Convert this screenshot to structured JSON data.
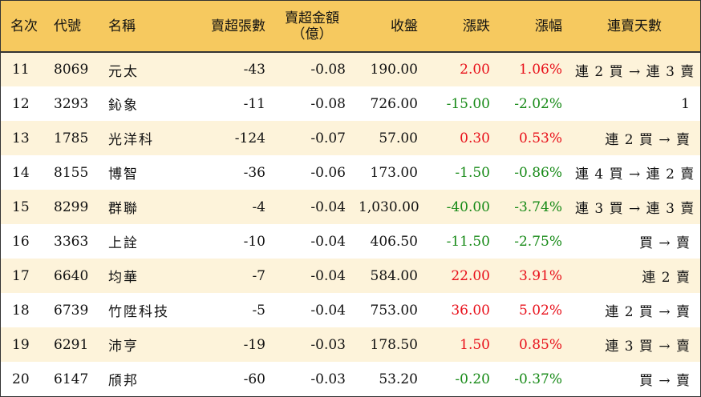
{
  "headers": {
    "rank": "名次",
    "code": "代號",
    "name": "名稱",
    "net_sell_lots": "賣超張數",
    "net_sell_amount_line1": "賣超金額",
    "net_sell_amount_line2": "（億）",
    "close": "收盤",
    "change": "漲跌",
    "change_pct": "漲幅",
    "streak": "連賣天數"
  },
  "colors": {
    "header_bg": "#f6c95f",
    "stripe_bg": "#fdf3da",
    "up": "#e8101a",
    "down": "#178a17"
  },
  "rows": [
    {
      "rank": "11",
      "code": "8069",
      "name": "元太",
      "net_sell_lots": "-43",
      "net_sell_amount": "-0.08",
      "close": "190.00",
      "change": "2.00",
      "change_pct": "1.06%",
      "direction": "up",
      "streak": "連 2 買 → 連 3 賣"
    },
    {
      "rank": "12",
      "code": "3293",
      "name": "鈊象",
      "net_sell_lots": "-11",
      "net_sell_amount": "-0.08",
      "close": "726.00",
      "change": "-15.00",
      "change_pct": "-2.02%",
      "direction": "down",
      "streak": "1"
    },
    {
      "rank": "13",
      "code": "1785",
      "name": "光洋科",
      "net_sell_lots": "-124",
      "net_sell_amount": "-0.07",
      "close": "57.00",
      "change": "0.30",
      "change_pct": "0.53%",
      "direction": "up",
      "streak": "連 2 買 → 賣"
    },
    {
      "rank": "14",
      "code": "8155",
      "name": "博智",
      "net_sell_lots": "-36",
      "net_sell_amount": "-0.06",
      "close": "173.00",
      "change": "-1.50",
      "change_pct": "-0.86%",
      "direction": "down",
      "streak": "連 4 買 → 連 2 賣"
    },
    {
      "rank": "15",
      "code": "8299",
      "name": "群聯",
      "net_sell_lots": "-4",
      "net_sell_amount": "-0.04",
      "close": "1,030.00",
      "change": "-40.00",
      "change_pct": "-3.74%",
      "direction": "down",
      "streak": "連 3 買 → 連 3 賣"
    },
    {
      "rank": "16",
      "code": "3363",
      "name": "上詮",
      "net_sell_lots": "-10",
      "net_sell_amount": "-0.04",
      "close": "406.50",
      "change": "-11.50",
      "change_pct": "-2.75%",
      "direction": "down",
      "streak": "買 → 賣"
    },
    {
      "rank": "17",
      "code": "6640",
      "name": "均華",
      "net_sell_lots": "-7",
      "net_sell_amount": "-0.04",
      "close": "584.00",
      "change": "22.00",
      "change_pct": "3.91%",
      "direction": "up",
      "streak": "連 2 賣"
    },
    {
      "rank": "18",
      "code": "6739",
      "name": "竹陞科技",
      "net_sell_lots": "-5",
      "net_sell_amount": "-0.04",
      "close": "753.00",
      "change": "36.00",
      "change_pct": "5.02%",
      "direction": "up",
      "streak": "連 2 買 → 賣"
    },
    {
      "rank": "19",
      "code": "6291",
      "name": "沛亨",
      "net_sell_lots": "-19",
      "net_sell_amount": "-0.03",
      "close": "178.50",
      "change": "1.50",
      "change_pct": "0.85%",
      "direction": "up",
      "streak": "連 3 買 → 賣"
    },
    {
      "rank": "20",
      "code": "6147",
      "name": "頎邦",
      "net_sell_lots": "-60",
      "net_sell_amount": "-0.03",
      "close": "53.20",
      "change": "-0.20",
      "change_pct": "-0.37%",
      "direction": "down",
      "streak": "買 → 賣"
    }
  ]
}
